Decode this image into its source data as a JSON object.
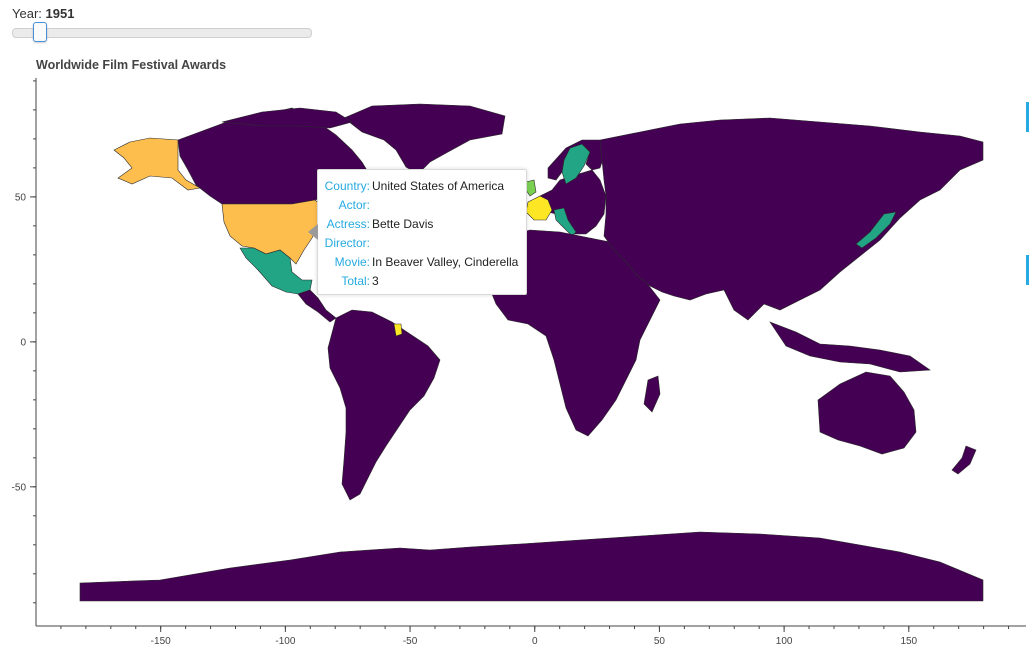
{
  "slider": {
    "label": "Year: ",
    "year": "1951",
    "min": 1946,
    "max": 2016,
    "value": 1951
  },
  "plot": {
    "title": "Worldwide Film Festival Awards"
  },
  "map_data": {
    "x_ticks": [
      -150,
      -100,
      -50,
      0,
      50,
      100,
      150
    ],
    "y_ticks": [
      50,
      0,
      -50
    ],
    "xlim": [
      -200,
      197
    ],
    "ylim": [
      -98,
      91
    ],
    "colors": {
      "zero": "#440154",
      "teal": "#21a585",
      "orange": "#febe4e",
      "yellow": "#fde725",
      "green": "#7ad151",
      "border": "#2b2b2b"
    },
    "highlighted": [
      {
        "country": "United States of America",
        "total": 3,
        "color": "#febe4e"
      },
      {
        "country": "Mexico",
        "color": "#21a585"
      },
      {
        "country": "Sweden",
        "color": "#21a585"
      },
      {
        "country": "Italy",
        "color": "#21a585"
      },
      {
        "country": "Japan",
        "color": "#21a585"
      },
      {
        "country": "France",
        "color": "#fde725"
      },
      {
        "country": "French Guiana",
        "color": "#fde725"
      },
      {
        "country": "United Kingdom",
        "color": "#7ad151"
      }
    ]
  },
  "tooltip": {
    "rows": [
      {
        "key": "Country:",
        "value": "United States of America"
      },
      {
        "key": "Actor:",
        "value": ""
      },
      {
        "key": "Actress:",
        "value": "Bette Davis"
      },
      {
        "key": "Director:",
        "value": ""
      },
      {
        "key": "Movie:",
        "value": "In Beaver Valley, Cinderella"
      },
      {
        "key": "Total:",
        "value": "3"
      }
    ]
  }
}
